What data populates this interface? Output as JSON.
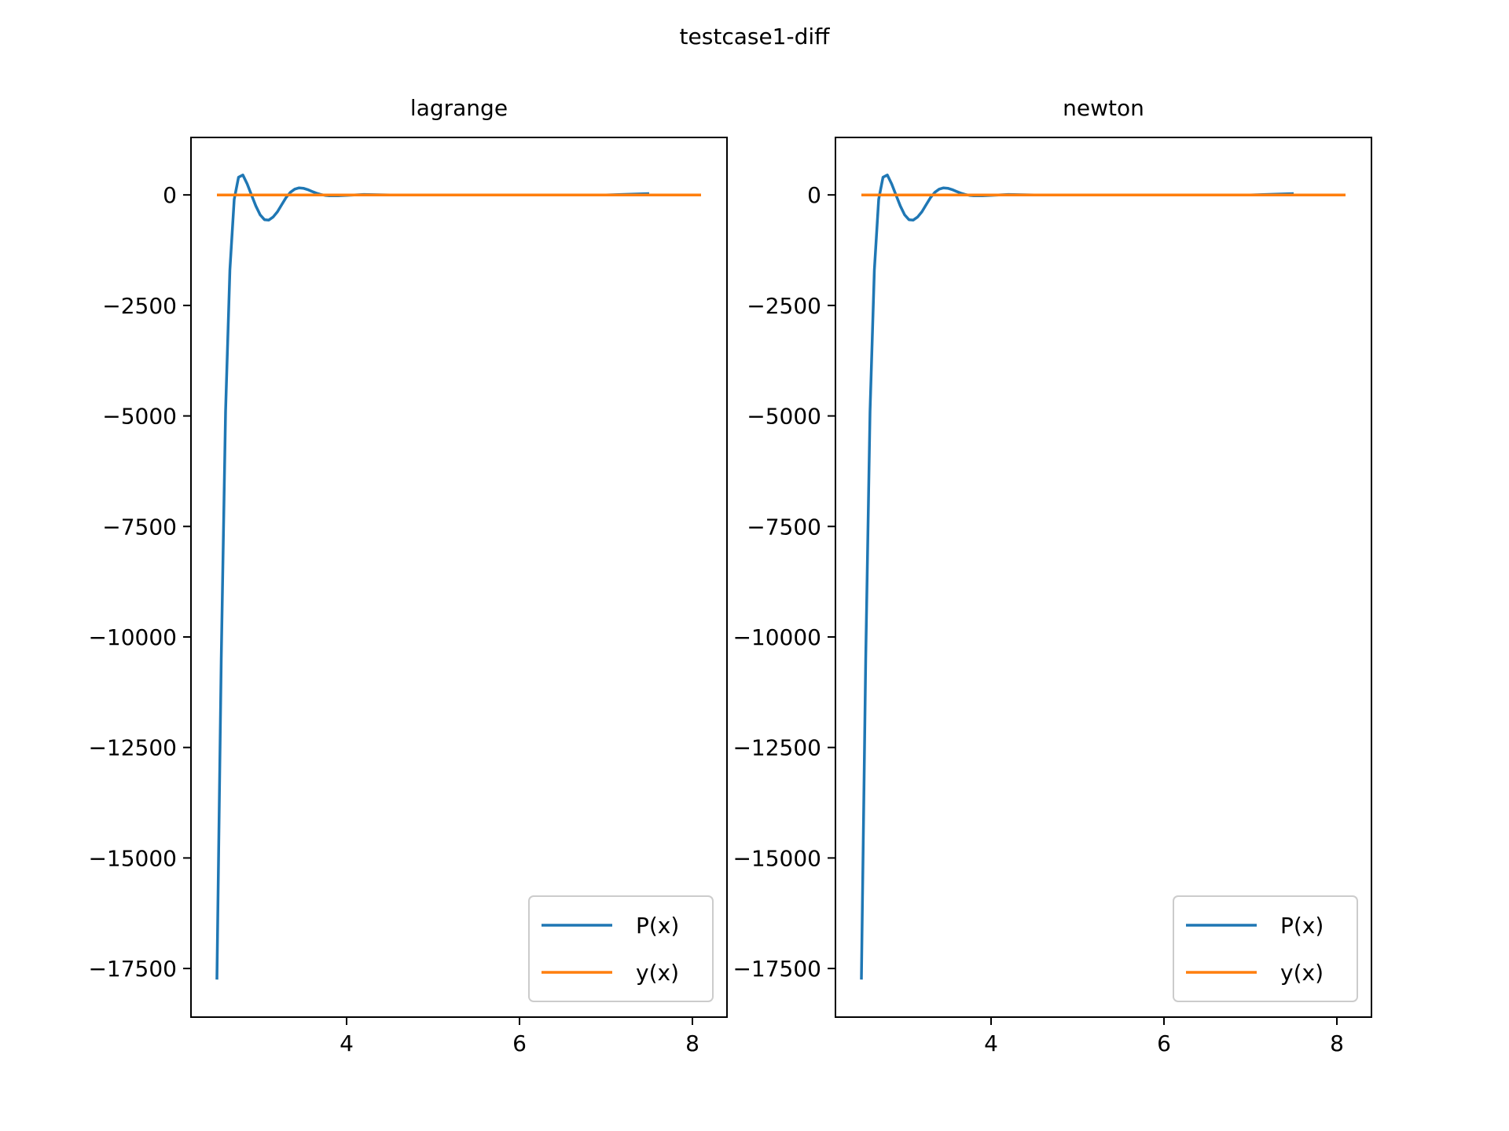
{
  "figure": {
    "suptitle": "testcase1-diff"
  },
  "chart_data": [
    {
      "type": "line",
      "title": "lagrange",
      "xlabel": "",
      "ylabel": "",
      "xlim": [
        2.2,
        8.4
      ],
      "ylim": [
        -18600,
        1300
      ],
      "xticks": [
        4,
        6,
        8
      ],
      "yticks": [
        0,
        -2500,
        -5000,
        -7500,
        -10000,
        -12500,
        -15000,
        -17500
      ],
      "ytick_labels": [
        "0",
        "−2500",
        "−5000",
        "−7500",
        "−10000",
        "−12500",
        "−15000",
        "−17500"
      ],
      "grid": false,
      "legend": {
        "position": "lower right",
        "entries": [
          "P(x)",
          "y(x)"
        ]
      },
      "series": [
        {
          "name": "P(x)",
          "color": "#1f77b4",
          "x": [
            2.5,
            2.55,
            2.6,
            2.65,
            2.7,
            2.75,
            2.8,
            2.85,
            2.9,
            2.95,
            3.0,
            3.05,
            3.1,
            3.15,
            3.2,
            3.25,
            3.3,
            3.35,
            3.4,
            3.45,
            3.5,
            3.55,
            3.6,
            3.65,
            3.7,
            3.75,
            3.8,
            3.9,
            4.0,
            4.2,
            4.5,
            5.0,
            6.0,
            7.0,
            7.5
          ],
          "y": [
            -17750,
            -10500,
            -4900,
            -1700,
            -100,
            400,
            450,
            250,
            0,
            -250,
            -450,
            -560,
            -570,
            -500,
            -380,
            -220,
            -60,
            60,
            130,
            160,
            150,
            120,
            80,
            40,
            10,
            -10,
            -20,
            -20,
            -10,
            10,
            0,
            0,
            0,
            0,
            30
          ]
        },
        {
          "name": "y(x)",
          "color": "#ff7f0e",
          "x": [
            2.5,
            3.0,
            3.5,
            4.0,
            4.5,
            5.0,
            5.5,
            6.0,
            6.5,
            7.0,
            7.5,
            8.0,
            8.1
          ],
          "y": [
            0,
            0,
            0,
            0,
            0,
            0,
            0,
            0,
            0,
            0,
            0,
            0,
            0
          ]
        }
      ]
    },
    {
      "type": "line",
      "title": "newton",
      "xlabel": "",
      "ylabel": "",
      "xlim": [
        2.2,
        8.4
      ],
      "ylim": [
        -18600,
        1300
      ],
      "xticks": [
        4,
        6,
        8
      ],
      "yticks": [
        0,
        -2500,
        -5000,
        -7500,
        -10000,
        -12500,
        -15000,
        -17500
      ],
      "ytick_labels": [
        "0",
        "−2500",
        "−5000",
        "−7500",
        "−10000",
        "−12500",
        "−15000",
        "−17500"
      ],
      "grid": false,
      "legend": {
        "position": "lower right",
        "entries": [
          "P(x)",
          "y(x)"
        ]
      },
      "series": [
        {
          "name": "P(x)",
          "color": "#1f77b4",
          "x": [
            2.5,
            2.55,
            2.6,
            2.65,
            2.7,
            2.75,
            2.8,
            2.85,
            2.9,
            2.95,
            3.0,
            3.05,
            3.1,
            3.15,
            3.2,
            3.25,
            3.3,
            3.35,
            3.4,
            3.45,
            3.5,
            3.55,
            3.6,
            3.65,
            3.7,
            3.75,
            3.8,
            3.9,
            4.0,
            4.2,
            4.5,
            5.0,
            6.0,
            7.0,
            7.5
          ],
          "y": [
            -17750,
            -10500,
            -4900,
            -1700,
            -100,
            400,
            450,
            250,
            0,
            -250,
            -450,
            -560,
            -570,
            -500,
            -380,
            -220,
            -60,
            60,
            130,
            160,
            150,
            120,
            80,
            40,
            10,
            -10,
            -20,
            -20,
            -10,
            10,
            0,
            0,
            0,
            0,
            30
          ]
        },
        {
          "name": "y(x)",
          "color": "#ff7f0e",
          "x": [
            2.5,
            3.0,
            3.5,
            4.0,
            4.5,
            5.0,
            5.5,
            6.0,
            6.5,
            7.0,
            7.5,
            8.0,
            8.1
          ],
          "y": [
            0,
            0,
            0,
            0,
            0,
            0,
            0,
            0,
            0,
            0,
            0,
            0,
            0
          ]
        }
      ]
    }
  ]
}
